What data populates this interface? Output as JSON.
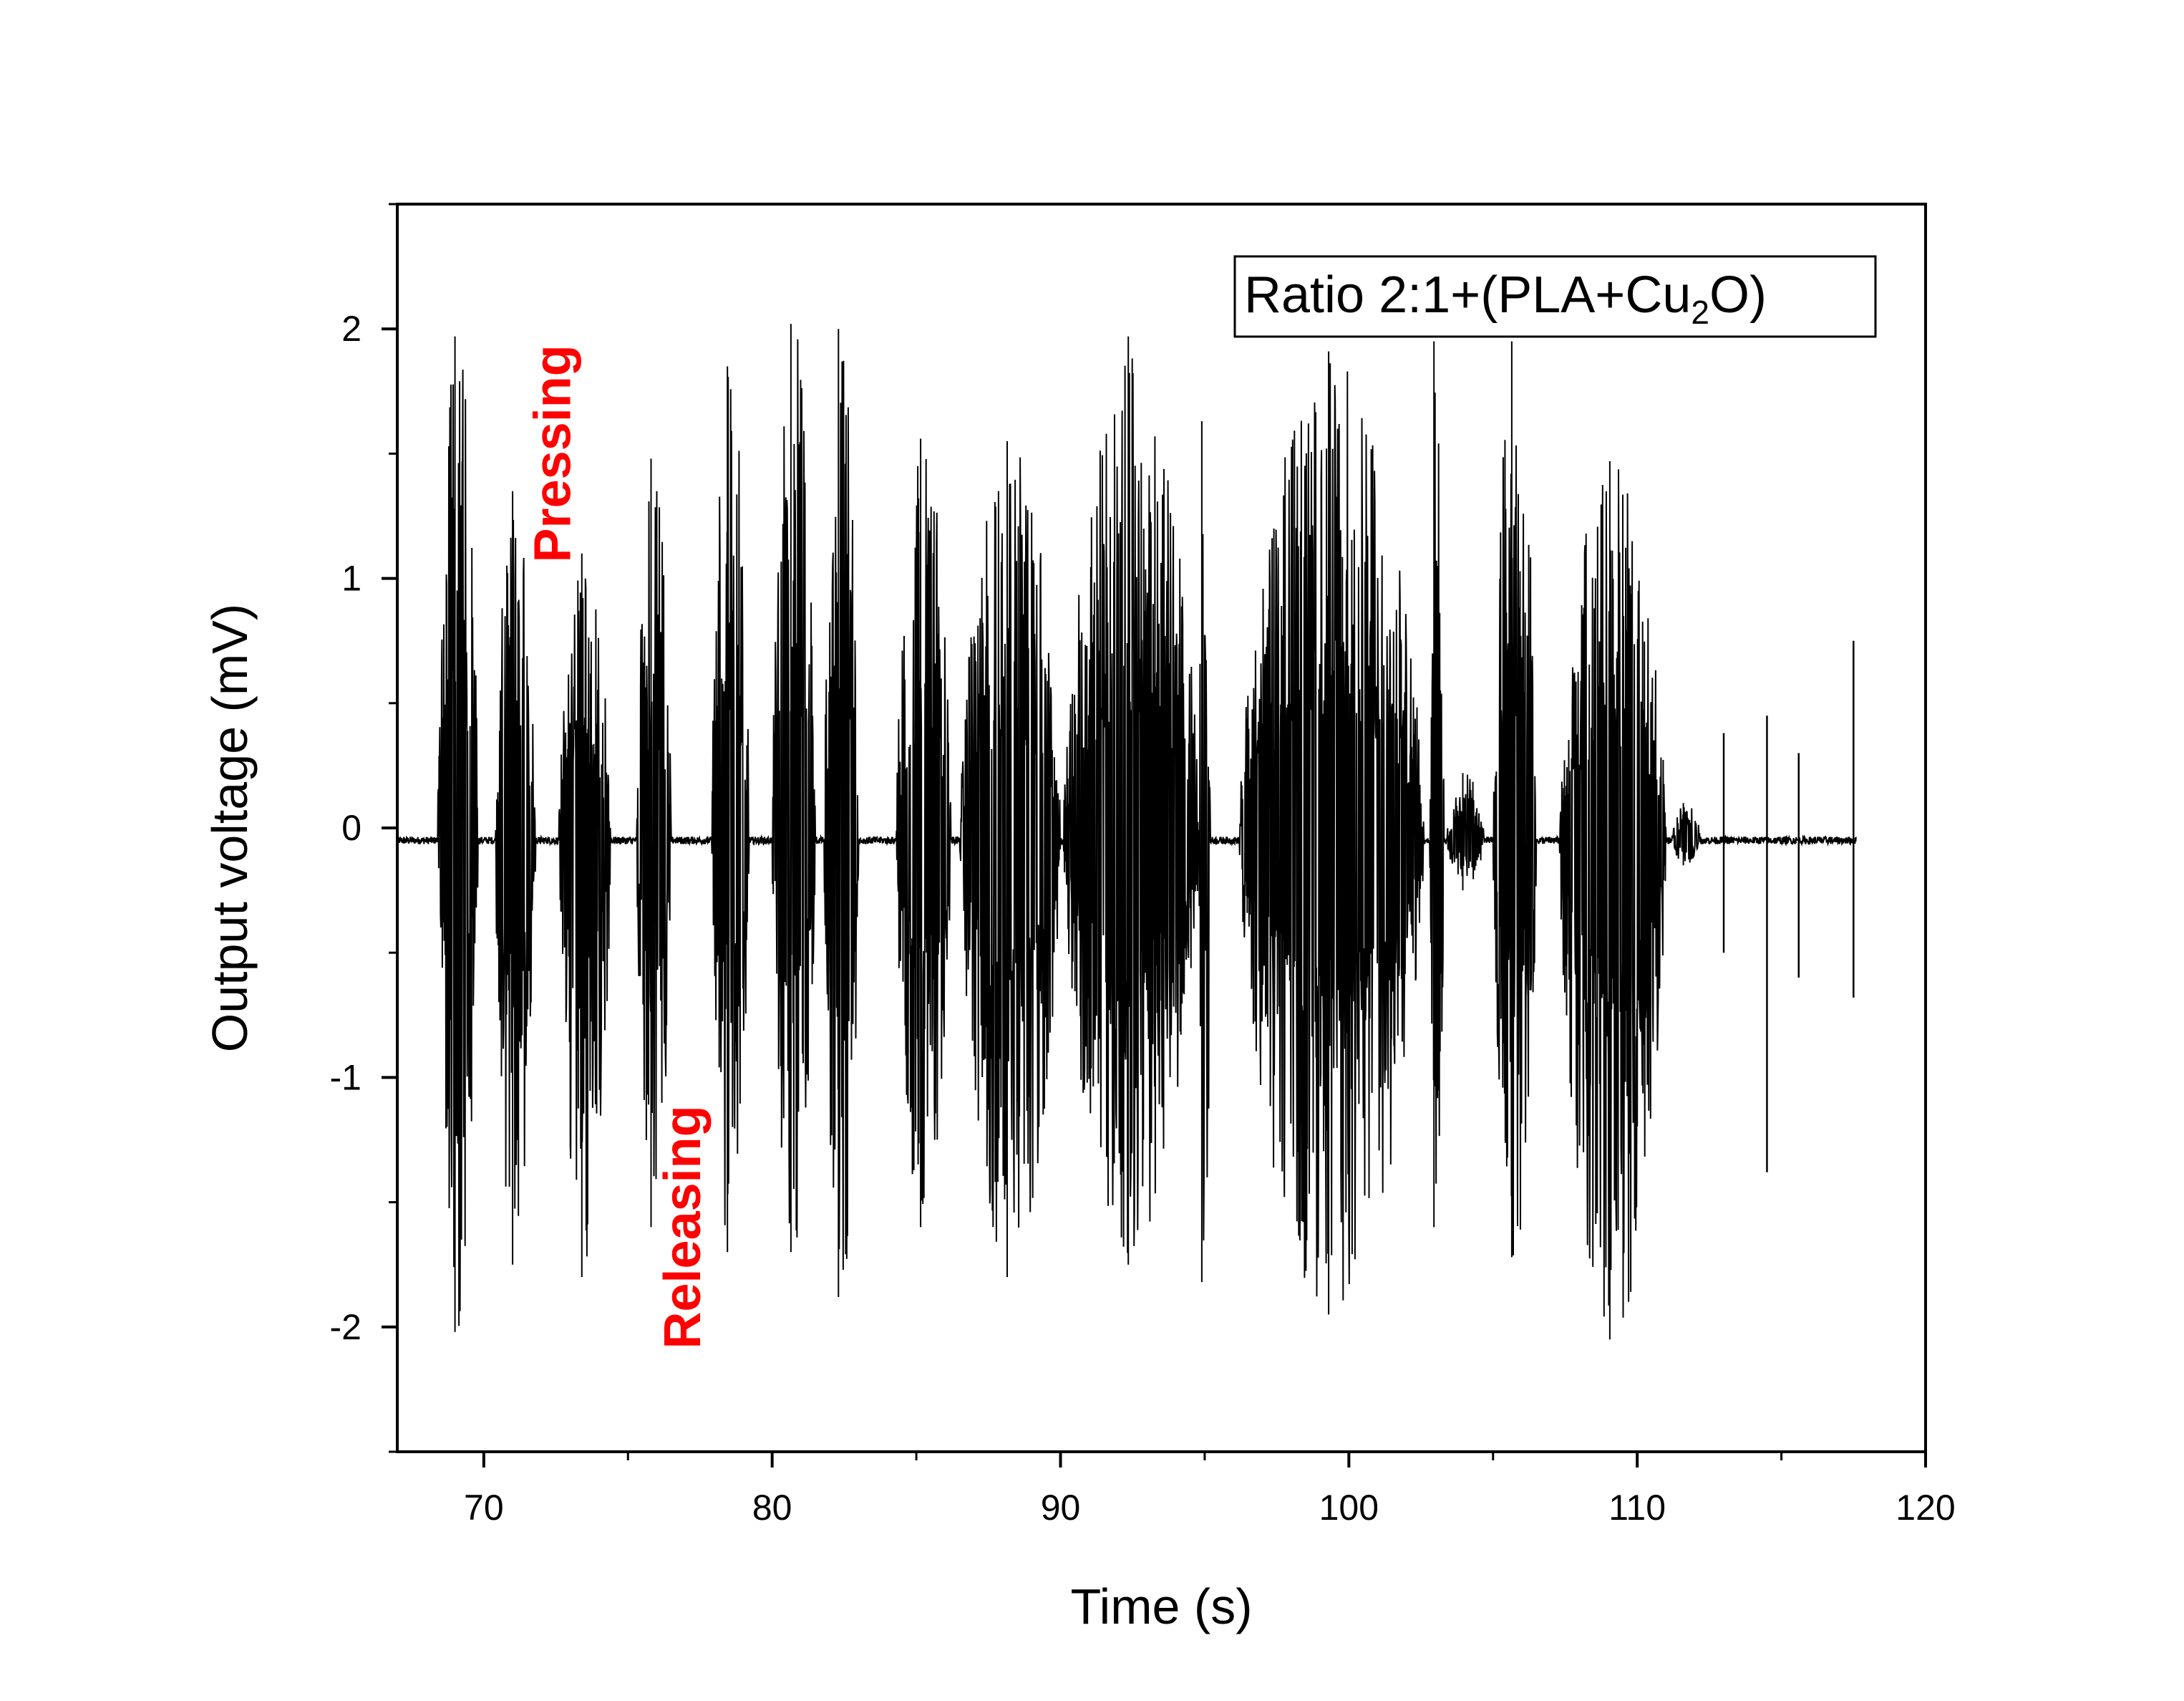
{
  "chart_data": {
    "type": "line",
    "xlabel": "Time (s)",
    "ylabel": "Output voltage (mV)",
    "xlim": [
      67,
      120
    ],
    "ylim": [
      -2.5,
      2.5
    ],
    "x_ticks": [
      70,
      80,
      90,
      100,
      110,
      120
    ],
    "y_ticks": [
      -2,
      -1,
      0,
      1,
      2
    ],
    "x_tick_labels": [
      "70",
      "80",
      "90",
      "100",
      "110",
      "120"
    ],
    "y_tick_labels": [
      "-2",
      "-1",
      "0",
      "1",
      "2"
    ],
    "grid": false,
    "legend": {
      "text_main": "Ratio 2:1+(PLA+Cu",
      "text_sub": "2",
      "text_end": "O)",
      "placement": "top-right"
    },
    "annotations": [
      {
        "text": "Pressing",
        "x": 73,
        "y": 1.5,
        "color": "#ff0000"
      },
      {
        "text": "Releasing",
        "x": 77.5,
        "y": -1.6,
        "color": "#ff0000"
      }
    ],
    "series": [
      {
        "color": "#000000",
        "baseline": -0.05,
        "x_start": 67,
        "x_end": 117.6,
        "bursts": [
          {
            "start": 68.4,
            "end": 69.8,
            "max": 1.97,
            "min": -2.02
          },
          {
            "start": 70.4,
            "end": 71.8,
            "max": 1.35,
            "min": -1.75
          },
          {
            "start": 72.6,
            "end": 74.4,
            "max": 1.1,
            "min": -1.8
          },
          {
            "start": 75.3,
            "end": 76.5,
            "max": 1.48,
            "min": -1.6
          },
          {
            "start": 77.9,
            "end": 79.2,
            "max": 1.85,
            "min": -1.7
          },
          {
            "start": 80.0,
            "end": 81.5,
            "max": 2.02,
            "min": -1.7
          },
          {
            "start": 81.8,
            "end": 83.0,
            "max": 2.0,
            "min": -1.88
          },
          {
            "start": 84.3,
            "end": 86.2,
            "max": 1.56,
            "min": -1.6
          },
          {
            "start": 86.5,
            "end": 90.0,
            "max": 1.55,
            "min": -1.8
          },
          {
            "start": 90.1,
            "end": 94.8,
            "max": 1.97,
            "min": -1.75
          },
          {
            "start": 94.8,
            "end": 95.2,
            "max": 1.63,
            "min": -1.82
          },
          {
            "start": 96.2,
            "end": 102.6,
            "max": 1.91,
            "min": -1.95
          },
          {
            "start": 102.8,
            "end": 103.3,
            "max": 1.95,
            "min": -1.6
          },
          {
            "start": 103.4,
            "end": 104.7,
            "max": 0.22,
            "min": -0.25
          },
          {
            "start": 105.0,
            "end": 106.5,
            "max": 1.95,
            "min": -1.72
          },
          {
            "start": 107.3,
            "end": 111.0,
            "max": 1.47,
            "min": -2.05
          },
          {
            "start": 111.2,
            "end": 112.2,
            "max": 0.1,
            "min": -0.15
          }
        ],
        "spikes": [
          {
            "x": 113.0,
            "max": 0.38,
            "min": -0.5
          },
          {
            "x": 114.5,
            "max": 0.45,
            "min": -1.38
          },
          {
            "x": 115.6,
            "max": 0.3,
            "min": -0.6
          },
          {
            "x": 117.5,
            "max": 0.75,
            "min": -0.68
          }
        ]
      }
    ]
  }
}
